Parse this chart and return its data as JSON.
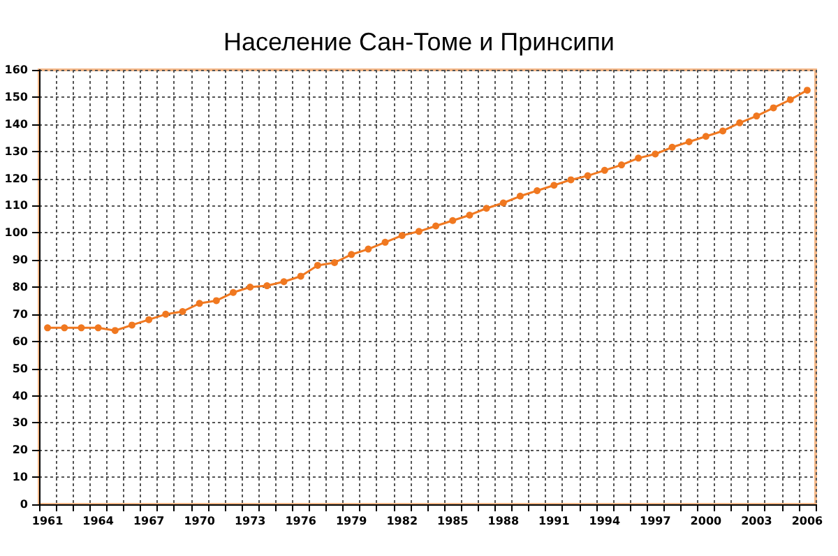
{
  "chart_data": {
    "type": "line",
    "title": "Население Сан-Томе и Принсипи",
    "categories": [
      "1961",
      null,
      null,
      "1964",
      null,
      null,
      "1967",
      null,
      null,
      "1970",
      null,
      null,
      "1973",
      null,
      null,
      "1976",
      null,
      null,
      "1979",
      null,
      null,
      "1982",
      null,
      null,
      "1985",
      null,
      null,
      "1988",
      null,
      null,
      "1991",
      null,
      null,
      "1994",
      null,
      null,
      "1997",
      null,
      null,
      "2000",
      null,
      null,
      "2003",
      null,
      null,
      "2006"
    ],
    "series": [
      {
        "color": "#f07820",
        "values": [
          65,
          65,
          65,
          65,
          64,
          66,
          68,
          70,
          71,
          74,
          75,
          78,
          80,
          80.5,
          82,
          84,
          88,
          89,
          92,
          94,
          96.5,
          99,
          100.5,
          102.5,
          104.5,
          106.5,
          109,
          111,
          113.5,
          115.5,
          117.5,
          119.5,
          121,
          123,
          125,
          127.5,
          129,
          131.5,
          133.5,
          135.5,
          137.5,
          140.5,
          143,
          146,
          149,
          152.5
        ]
      }
    ],
    "ylim": [
      0,
      160
    ],
    "yticks": [
      0,
      10,
      20,
      30,
      40,
      50,
      60,
      70,
      80,
      90,
      100,
      110,
      120,
      130,
      140,
      150,
      160
    ],
    "grid": true,
    "marker": "circle",
    "line_style": "solid"
  }
}
